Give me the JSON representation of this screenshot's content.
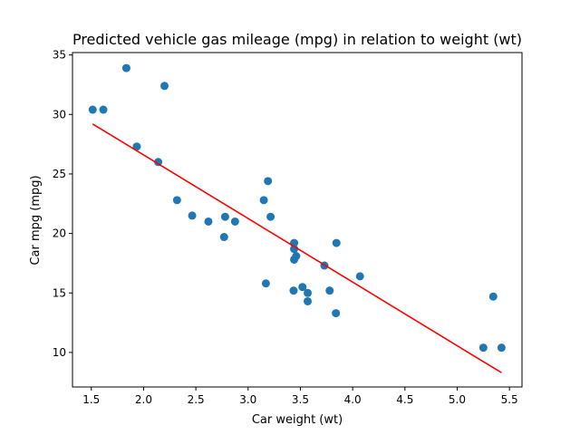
{
  "chart_data": {
    "type": "scatter",
    "title": "Predicted vehicle gas mileage (mpg) in relation to weight (wt)",
    "xlabel": "Car weight (wt)",
    "ylabel": "Car mpg (mpg)",
    "xlim": [
      1.32,
      5.62
    ],
    "ylim": [
      7.1,
      35.2
    ],
    "xticks": [
      1.5,
      2.0,
      2.5,
      3.0,
      3.5,
      4.0,
      4.5,
      5.0,
      5.5
    ],
    "yticks": [
      10,
      15,
      20,
      25,
      30,
      35
    ],
    "grid": false,
    "legend": "none",
    "series": [
      {
        "kind": "scatter",
        "color": "#1f77b4",
        "points": [
          {
            "x": 1.513,
            "y": 30.4
          },
          {
            "x": 1.615,
            "y": 30.4
          },
          {
            "x": 1.835,
            "y": 33.9
          },
          {
            "x": 1.935,
            "y": 27.3
          },
          {
            "x": 2.14,
            "y": 26.0
          },
          {
            "x": 2.2,
            "y": 32.4
          },
          {
            "x": 2.32,
            "y": 22.8
          },
          {
            "x": 2.465,
            "y": 21.5
          },
          {
            "x": 2.62,
            "y": 21.0
          },
          {
            "x": 2.77,
            "y": 19.7
          },
          {
            "x": 2.78,
            "y": 21.4
          },
          {
            "x": 2.875,
            "y": 21.0
          },
          {
            "x": 3.15,
            "y": 22.8
          },
          {
            "x": 3.17,
            "y": 15.8
          },
          {
            "x": 3.19,
            "y": 24.4
          },
          {
            "x": 3.215,
            "y": 21.4
          },
          {
            "x": 3.435,
            "y": 15.2
          },
          {
            "x": 3.44,
            "y": 18.7
          },
          {
            "x": 3.44,
            "y": 19.2
          },
          {
            "x": 3.44,
            "y": 17.8
          },
          {
            "x": 3.46,
            "y": 18.1
          },
          {
            "x": 3.52,
            "y": 15.5
          },
          {
            "x": 3.57,
            "y": 14.3
          },
          {
            "x": 3.57,
            "y": 15.0
          },
          {
            "x": 3.73,
            "y": 17.3
          },
          {
            "x": 3.78,
            "y": 15.2
          },
          {
            "x": 3.84,
            "y": 13.3
          },
          {
            "x": 3.845,
            "y": 19.2
          },
          {
            "x": 4.07,
            "y": 16.4
          },
          {
            "x": 5.25,
            "y": 10.4
          },
          {
            "x": 5.345,
            "y": 14.7
          },
          {
            "x": 5.424,
            "y": 10.4
          }
        ]
      },
      {
        "kind": "line",
        "color": "#ff0000",
        "points": [
          {
            "x": 1.513,
            "y": 29.2
          },
          {
            "x": 5.424,
            "y": 8.3
          }
        ]
      }
    ]
  }
}
